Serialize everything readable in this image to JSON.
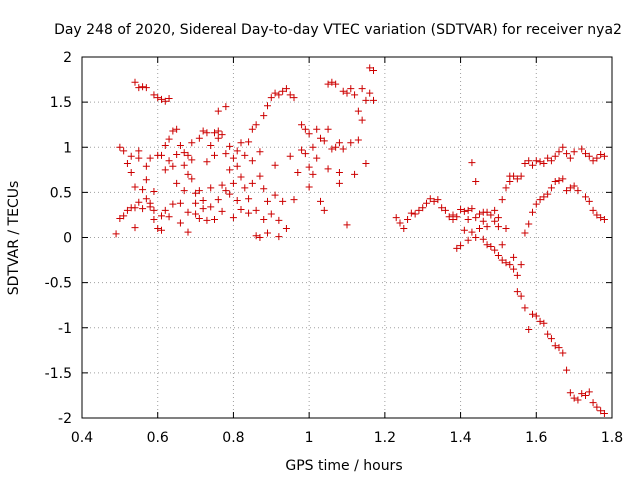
{
  "chart_data": {
    "type": "scatter",
    "title": "Day 248 of 2020, Sidereal Day-to-day VTEC variation (SDTVAR) for receiver nya2",
    "xlabel": "GPS time / hours",
    "ylabel": "SDTVAR / TECUs",
    "xlim": [
      0.4,
      1.8
    ],
    "ylim": [
      -2,
      2
    ],
    "xticks": [
      0.4,
      0.6,
      0.8,
      1.0,
      1.2,
      1.4,
      1.6,
      1.8
    ],
    "xtick_labels": [
      "0.4",
      "0.6",
      "0.8",
      "1",
      "1.2",
      "1.4",
      "1.6",
      "1.8"
    ],
    "yticks": [
      -2,
      -1.5,
      -1,
      -0.5,
      0,
      0.5,
      1,
      1.5,
      2
    ],
    "ytick_labels": [
      "-2",
      "-1.5",
      "-1",
      "-0.5",
      "0",
      "0.5",
      "1",
      "1.5",
      "2"
    ],
    "grid": true,
    "marker": "+",
    "marker_color": "#cc0000",
    "series": [
      {
        "name": "SDTVAR",
        "points": [
          [
            0.49,
            0.04
          ],
          [
            0.5,
            1.0
          ],
          [
            0.5,
            0.21
          ],
          [
            0.51,
            0.24
          ],
          [
            0.51,
            0.96
          ],
          [
            0.52,
            0.3
          ],
          [
            0.52,
            0.82
          ],
          [
            0.53,
            0.72
          ],
          [
            0.53,
            0.33
          ],
          [
            0.53,
            0.9
          ],
          [
            0.54,
            0.56
          ],
          [
            0.54,
            0.33
          ],
          [
            0.54,
            0.11
          ],
          [
            0.54,
            1.72
          ],
          [
            0.55,
            0.39
          ],
          [
            0.55,
            0.96
          ],
          [
            0.55,
            1.66
          ],
          [
            0.55,
            0.88
          ],
          [
            0.56,
            0.53
          ],
          [
            0.56,
            0.32
          ],
          [
            0.56,
            1.67
          ],
          [
            0.57,
            0.79
          ],
          [
            0.57,
            0.43
          ],
          [
            0.57,
            0.64
          ],
          [
            0.57,
            1.66
          ],
          [
            0.58,
            0.38
          ],
          [
            0.58,
            0.88
          ],
          [
            0.58,
            0.34
          ],
          [
            0.59,
            0.51
          ],
          [
            0.59,
            0.2
          ],
          [
            0.59,
            1.58
          ],
          [
            0.59,
            0.3
          ],
          [
            0.6,
            0.91
          ],
          [
            0.6,
            1.55
          ],
          [
            0.6,
            0.1
          ],
          [
            0.61,
            0.91
          ],
          [
            0.61,
            1.53
          ],
          [
            0.61,
            0.24
          ],
          [
            0.61,
            0.08
          ],
          [
            0.62,
            1.02
          ],
          [
            0.62,
            1.51
          ],
          [
            0.62,
            0.75
          ],
          [
            0.62,
            0.3
          ],
          [
            0.63,
            1.09
          ],
          [
            0.63,
            0.85
          ],
          [
            0.63,
            1.54
          ],
          [
            0.63,
            0.23
          ],
          [
            0.64,
            1.18
          ],
          [
            0.64,
            0.79
          ],
          [
            0.64,
            0.37
          ],
          [
            0.65,
            1.2
          ],
          [
            0.65,
            0.6
          ],
          [
            0.65,
            0.92
          ],
          [
            0.66,
            1.02
          ],
          [
            0.66,
            0.38
          ],
          [
            0.66,
            0.16
          ],
          [
            0.67,
            0.94
          ],
          [
            0.67,
            0.8
          ],
          [
            0.67,
            0.52
          ],
          [
            0.68,
            0.91
          ],
          [
            0.68,
            0.7
          ],
          [
            0.68,
            0.28
          ],
          [
            0.68,
            0.06
          ],
          [
            0.69,
            1.05
          ],
          [
            0.69,
            0.86
          ],
          [
            0.69,
            0.65
          ],
          [
            0.7,
            0.49
          ],
          [
            0.7,
            0.26
          ],
          [
            0.7,
            0.38
          ],
          [
            0.71,
            1.1
          ],
          [
            0.71,
            0.52
          ],
          [
            0.71,
            0.21
          ],
          [
            0.72,
            1.18
          ],
          [
            0.72,
            0.41
          ],
          [
            0.72,
            0.32
          ],
          [
            0.73,
            1.16
          ],
          [
            0.73,
            0.84
          ],
          [
            0.73,
            0.19
          ],
          [
            0.74,
            1.02
          ],
          [
            0.74,
            0.55
          ],
          [
            0.74,
            0.34
          ],
          [
            0.75,
            1.16
          ],
          [
            0.75,
            0.91
          ],
          [
            0.75,
            0.2
          ],
          [
            0.76,
            1.1
          ],
          [
            0.76,
            1.18
          ],
          [
            0.76,
            0.42
          ],
          [
            0.76,
            1.4
          ],
          [
            0.77,
            1.14
          ],
          [
            0.77,
            0.58
          ],
          [
            0.77,
            0.29
          ],
          [
            0.78,
            1.45
          ],
          [
            0.78,
            0.93
          ],
          [
            0.78,
            0.52
          ],
          [
            0.79,
            1.01
          ],
          [
            0.79,
            0.75
          ],
          [
            0.79,
            0.48
          ],
          [
            0.8,
            0.88
          ],
          [
            0.8,
            0.6
          ],
          [
            0.8,
            0.22
          ],
          [
            0.81,
            0.96
          ],
          [
            0.81,
            0.79
          ],
          [
            0.81,
            0.41
          ],
          [
            0.82,
            1.05
          ],
          [
            0.82,
            0.67
          ],
          [
            0.82,
            0.31
          ],
          [
            0.83,
            0.91
          ],
          [
            0.83,
            0.55
          ],
          [
            0.84,
            1.06
          ],
          [
            0.84,
            0.43
          ],
          [
            0.84,
            0.27
          ],
          [
            0.85,
            0.85
          ],
          [
            0.85,
            1.2
          ],
          [
            0.85,
            0.6
          ],
          [
            0.86,
            1.25
          ],
          [
            0.86,
            0.3
          ],
          [
            0.86,
            0.02
          ],
          [
            0.87,
            0.95
          ],
          [
            0.87,
            0.68
          ],
          [
            0.87,
            0.0
          ],
          [
            0.88,
            1.35
          ],
          [
            0.88,
            0.54
          ],
          [
            0.88,
            0.2
          ],
          [
            0.89,
            1.46
          ],
          [
            0.89,
            0.4
          ],
          [
            0.89,
            0.05
          ],
          [
            0.9,
            1.55
          ],
          [
            0.9,
            0.26
          ],
          [
            0.91,
            1.6
          ],
          [
            0.91,
            0.8
          ],
          [
            0.91,
            0.47
          ],
          [
            0.92,
            1.58
          ],
          [
            0.92,
            0.19
          ],
          [
            0.92,
            0.01
          ],
          [
            0.93,
            1.62
          ],
          [
            0.93,
            0.4
          ],
          [
            0.94,
            1.65
          ],
          [
            0.94,
            0.1
          ],
          [
            0.95,
            1.58
          ],
          [
            0.95,
            0.9
          ],
          [
            0.96,
            1.55
          ],
          [
            0.96,
            0.42
          ],
          [
            0.97,
            0.72
          ],
          [
            0.98,
            0.97
          ],
          [
            0.98,
            1.25
          ],
          [
            0.99,
            1.2
          ],
          [
            0.99,
            0.93
          ],
          [
            1.0,
            0.78
          ],
          [
            1.0,
            1.15
          ],
          [
            1.0,
            0.56
          ],
          [
            1.01,
            0.7
          ],
          [
            1.01,
            1.0
          ],
          [
            1.02,
            1.2
          ],
          [
            1.02,
            0.88
          ],
          [
            1.03,
            1.1
          ],
          [
            1.03,
            0.4
          ],
          [
            1.04,
            1.07
          ],
          [
            1.04,
            0.3
          ],
          [
            1.05,
            1.7
          ],
          [
            1.05,
            1.2
          ],
          [
            1.05,
            0.76
          ],
          [
            1.06,
            1.72
          ],
          [
            1.06,
            0.98
          ],
          [
            1.07,
            1.0
          ],
          [
            1.07,
            1.7
          ],
          [
            1.08,
            1.05
          ],
          [
            1.08,
            0.72
          ],
          [
            1.08,
            0.6
          ],
          [
            1.09,
            1.62
          ],
          [
            1.09,
            0.98
          ],
          [
            1.1,
            1.6
          ],
          [
            1.1,
            0.14
          ],
          [
            1.11,
            1.05
          ],
          [
            1.11,
            1.65
          ],
          [
            1.12,
            1.58
          ],
          [
            1.12,
            0.7
          ],
          [
            1.13,
            1.4
          ],
          [
            1.13,
            1.08
          ],
          [
            1.14,
            1.65
          ],
          [
            1.14,
            1.3
          ],
          [
            1.15,
            1.52
          ],
          [
            1.15,
            0.82
          ],
          [
            1.16,
            1.88
          ],
          [
            1.16,
            1.6
          ],
          [
            1.17,
            1.85
          ],
          [
            1.17,
            1.52
          ],
          [
            1.23,
            0.22
          ],
          [
            1.24,
            0.16
          ],
          [
            1.25,
            0.1
          ],
          [
            1.26,
            0.2
          ],
          [
            1.27,
            0.27
          ],
          [
            1.28,
            0.26
          ],
          [
            1.29,
            0.3
          ],
          [
            1.3,
            0.33
          ],
          [
            1.31,
            0.38
          ],
          [
            1.32,
            0.43
          ],
          [
            1.33,
            0.4
          ],
          [
            1.34,
            0.42
          ],
          [
            1.35,
            0.33
          ],
          [
            1.36,
            0.3
          ],
          [
            1.37,
            0.23
          ],
          [
            1.38,
            0.2
          ],
          [
            1.38,
            0.25
          ],
          [
            1.39,
            0.23
          ],
          [
            1.39,
            -0.12
          ],
          [
            1.4,
            0.31
          ],
          [
            1.4,
            -0.09
          ],
          [
            1.41,
            0.29
          ],
          [
            1.41,
            0.08
          ],
          [
            1.42,
            0.3
          ],
          [
            1.42,
            -0.03
          ],
          [
            1.42,
            0.2
          ],
          [
            1.43,
            0.32
          ],
          [
            1.43,
            0.83
          ],
          [
            1.43,
            0.06
          ],
          [
            1.44,
            0.62
          ],
          [
            1.44,
            0.22
          ],
          [
            1.44,
            0.0
          ],
          [
            1.45,
            0.26
          ],
          [
            1.45,
            0.1
          ],
          [
            1.46,
            0.18
          ],
          [
            1.46,
            0.28
          ],
          [
            1.46,
            -0.02
          ],
          [
            1.47,
            0.28
          ],
          [
            1.47,
            0.12
          ],
          [
            1.47,
            -0.08
          ],
          [
            1.48,
            0.25
          ],
          [
            1.48,
            -0.1
          ],
          [
            1.49,
            0.3
          ],
          [
            1.49,
            0.18
          ],
          [
            1.49,
            -0.14
          ],
          [
            1.5,
            0.22
          ],
          [
            1.5,
            -0.2
          ],
          [
            1.5,
            0.12
          ],
          [
            1.51,
            0.42
          ],
          [
            1.51,
            -0.25
          ],
          [
            1.51,
            -0.08
          ],
          [
            1.52,
            0.55
          ],
          [
            1.52,
            -0.28
          ],
          [
            1.52,
            0.1
          ],
          [
            1.53,
            0.68
          ],
          [
            1.53,
            -0.3
          ],
          [
            1.53,
            0.62
          ],
          [
            1.54,
            -0.35
          ],
          [
            1.54,
            -0.22
          ],
          [
            1.54,
            0.68
          ],
          [
            1.55,
            -0.42
          ],
          [
            1.55,
            -0.6
          ],
          [
            1.55,
            0.65
          ],
          [
            1.56,
            -0.65
          ],
          [
            1.56,
            -0.3
          ],
          [
            1.56,
            0.68
          ],
          [
            1.57,
            -0.78
          ],
          [
            1.57,
            0.05
          ],
          [
            1.57,
            0.82
          ],
          [
            1.58,
            -1.02
          ],
          [
            1.58,
            0.15
          ],
          [
            1.58,
            0.85
          ],
          [
            1.59,
            -0.85
          ],
          [
            1.59,
            0.28
          ],
          [
            1.59,
            0.8
          ],
          [
            1.6,
            -0.87
          ],
          [
            1.6,
            0.37
          ],
          [
            1.6,
            0.85
          ],
          [
            1.61,
            -0.93
          ],
          [
            1.61,
            0.42
          ],
          [
            1.61,
            0.84
          ],
          [
            1.62,
            -0.95
          ],
          [
            1.62,
            0.45
          ],
          [
            1.62,
            0.82
          ],
          [
            1.63,
            -1.07
          ],
          [
            1.63,
            0.48
          ],
          [
            1.63,
            0.88
          ],
          [
            1.64,
            -1.12
          ],
          [
            1.64,
            0.55
          ],
          [
            1.64,
            0.85
          ],
          [
            1.65,
            -1.2
          ],
          [
            1.65,
            0.62
          ],
          [
            1.65,
            0.9
          ],
          [
            1.66,
            -1.22
          ],
          [
            1.66,
            0.63
          ],
          [
            1.66,
            0.95
          ],
          [
            1.67,
            -1.28
          ],
          [
            1.67,
            1.0
          ],
          [
            1.67,
            0.65
          ],
          [
            1.68,
            -1.47
          ],
          [
            1.68,
            0.93
          ],
          [
            1.68,
            0.52
          ],
          [
            1.69,
            -1.72
          ],
          [
            1.69,
            0.88
          ],
          [
            1.69,
            0.55
          ],
          [
            1.7,
            -1.78
          ],
          [
            1.7,
            0.95
          ],
          [
            1.7,
            0.57
          ],
          [
            1.71,
            -1.8
          ],
          [
            1.71,
            0.52
          ],
          [
            1.72,
            -1.73
          ],
          [
            1.72,
            0.98
          ],
          [
            1.73,
            -1.75
          ],
          [
            1.73,
            0.45
          ],
          [
            1.73,
            0.93
          ],
          [
            1.74,
            -1.71
          ],
          [
            1.74,
            0.4
          ],
          [
            1.74,
            0.9
          ],
          [
            1.75,
            -1.83
          ],
          [
            1.75,
            0.3
          ],
          [
            1.75,
            0.85
          ],
          [
            1.76,
            -1.88
          ],
          [
            1.76,
            0.25
          ],
          [
            1.76,
            0.88
          ],
          [
            1.77,
            -1.92
          ],
          [
            1.77,
            0.22
          ],
          [
            1.77,
            0.92
          ],
          [
            1.78,
            -1.95
          ],
          [
            1.78,
            0.2
          ],
          [
            1.78,
            0.9
          ]
        ]
      }
    ]
  }
}
